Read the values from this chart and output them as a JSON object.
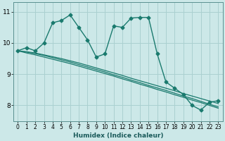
{
  "xlabel": "Humidex (Indice chaleur)",
  "bg_color": "#cce8e8",
  "grid_color": "#aad0d0",
  "line_color": "#1a7a6e",
  "xlim": [
    -0.5,
    23.5
  ],
  "ylim": [
    7.5,
    11.3
  ],
  "yticks": [
    8,
    9,
    10,
    11
  ],
  "xticks": [
    0,
    1,
    2,
    3,
    4,
    5,
    6,
    7,
    8,
    9,
    10,
    11,
    12,
    13,
    14,
    15,
    16,
    17,
    18,
    19,
    20,
    21,
    22,
    23
  ],
  "series_main": [
    9.75,
    9.85,
    9.75,
    10.0,
    10.65,
    10.72,
    10.9,
    10.5,
    10.1,
    9.55,
    9.65,
    10.55,
    10.5,
    10.8,
    10.82,
    10.82,
    9.65,
    8.75,
    8.55,
    8.35,
    8.0,
    7.85,
    8.1,
    8.15
  ],
  "series_linear": [
    [
      9.75,
      9.72,
      9.68,
      9.62,
      9.56,
      9.5,
      9.43,
      9.36,
      9.28,
      9.2,
      9.12,
      9.04,
      8.96,
      8.87,
      8.79,
      8.71,
      8.63,
      8.55,
      8.47,
      8.38,
      8.3,
      8.22,
      8.14,
      8.06
    ],
    [
      9.75,
      9.71,
      9.66,
      9.6,
      9.53,
      9.46,
      9.39,
      9.31,
      9.23,
      9.15,
      9.07,
      8.98,
      8.9,
      8.81,
      8.73,
      8.64,
      8.56,
      8.48,
      8.39,
      8.3,
      8.22,
      8.13,
      8.04,
      7.95
    ],
    [
      9.75,
      9.68,
      9.62,
      9.55,
      9.48,
      9.41,
      9.34,
      9.26,
      9.18,
      9.1,
      9.02,
      8.94,
      8.85,
      8.77,
      8.68,
      8.6,
      8.51,
      8.43,
      8.34,
      8.26,
      8.17,
      8.09,
      8.0,
      7.91
    ]
  ]
}
